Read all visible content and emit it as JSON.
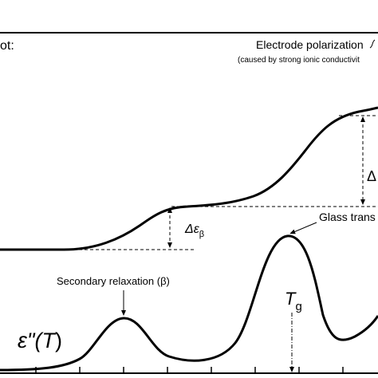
{
  "labels": {
    "top_left_fragment": "ot:",
    "electrode_title": "Electrode polarization",
    "electrode_note": "(caused by strong ionic conductivit",
    "delta_right_fragment": "Δ",
    "delta_beta_symbol": "Δε",
    "delta_beta_sub": "β",
    "glass_transition": "Glass trans",
    "secondary_relaxation": "Secondary relaxation (β)",
    "tg_symbol": "T",
    "tg_sub": "g",
    "loss_eps": "ε\"(",
    "loss_T": "T",
    "loss_close": ")"
  }
}
